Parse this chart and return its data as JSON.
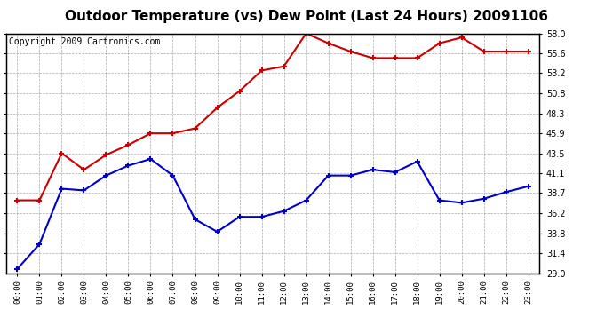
{
  "title": "Outdoor Temperature (vs) Dew Point (Last 24 Hours) 20091106",
  "copyright": "Copyright 2009 Cartronics.com",
  "x_labels": [
    "00:00",
    "01:00",
    "02:00",
    "03:00",
    "04:00",
    "05:00",
    "06:00",
    "07:00",
    "08:00",
    "09:00",
    "10:00",
    "11:00",
    "12:00",
    "13:00",
    "14:00",
    "15:00",
    "16:00",
    "17:00",
    "18:00",
    "19:00",
    "20:00",
    "21:00",
    "22:00",
    "23:00"
  ],
  "temp_data": [
    29.5,
    32.5,
    39.2,
    39.0,
    40.8,
    42.0,
    42.8,
    40.8,
    35.5,
    34.0,
    35.8,
    35.8,
    36.5,
    37.8,
    40.8,
    40.8,
    41.5,
    41.2,
    42.5,
    37.8,
    37.5,
    38.0,
    38.8,
    39.5
  ],
  "dew_data": [
    37.8,
    37.8,
    43.5,
    41.5,
    43.3,
    44.5,
    45.9,
    45.9,
    46.5,
    49.0,
    51.0,
    53.5,
    54.0,
    58.0,
    56.8,
    55.8,
    55.0,
    55.0,
    55.0,
    56.8,
    57.5,
    55.8,
    55.8,
    55.8
  ],
  "temp_color": "#0000CC",
  "dew_color": "#CC0000",
  "y_min": 29.0,
  "y_max": 58.0,
  "y_ticks": [
    29.0,
    31.4,
    33.8,
    36.2,
    38.7,
    41.1,
    43.5,
    45.9,
    48.3,
    50.8,
    53.2,
    55.6,
    58.0
  ],
  "background_color": "#FFFFFF",
  "plot_bg_color": "#FFFFFF",
  "grid_color": "#AAAAAA",
  "title_fontsize": 11,
  "copyright_fontsize": 7,
  "marker": "+",
  "markersize": 5
}
